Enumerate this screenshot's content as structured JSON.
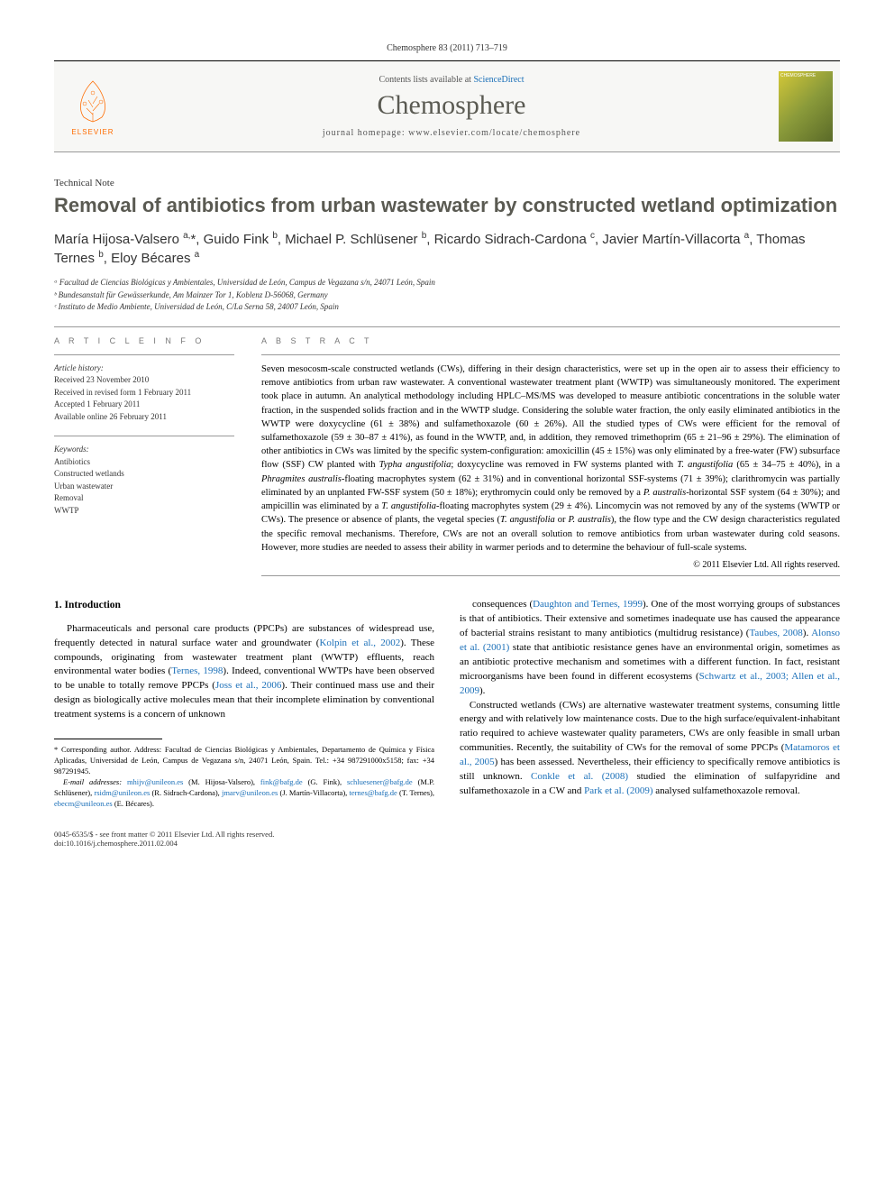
{
  "header": {
    "citation": "Chemosphere 83 (2011) 713–719",
    "contents_prefix": "Contents lists available at ",
    "contents_link": "ScienceDirect",
    "journal_name": "Chemosphere",
    "homepage_prefix": "journal homepage: ",
    "homepage_url": "www.elsevier.com/locate/chemosphere",
    "elsevier_label": "ELSEVIER",
    "cover_label": "CHEMOSPHERE"
  },
  "article": {
    "type": "Technical Note",
    "title": "Removal of antibiotics from urban wastewater by constructed wetland optimization"
  },
  "authors_html": "María Hijosa-Valsero <sup>a,</sup>*, Guido Fink <sup>b</sup>, Michael P. Schlüsener <sup>b</sup>, Ricardo Sidrach-Cardona <sup>c</sup>, Javier Martín-Villacorta <sup>a</sup>, Thomas Ternes <sup>b</sup>, Eloy Bécares <sup>a</sup>",
  "affiliations": [
    "ᵃ Facultad de Ciencias Biológicas y Ambientales, Universidad de León, Campus de Vegazana s/n, 24071 León, Spain",
    "ᵇ Bundesanstalt für Gewässerkunde, Am Mainzer Tor 1, Koblenz D-56068, Germany",
    "ᶜ Instituto de Medio Ambiente, Universidad de León, C/La Serna 58, 24007 León, Spain"
  ],
  "info": {
    "section_label": "A R T I C L E   I N F O",
    "history_title": "Article history:",
    "history": [
      "Received 23 November 2010",
      "Received in revised form 1 February 2011",
      "Accepted 1 February 2011",
      "Available online 26 February 2011"
    ],
    "keywords_title": "Keywords:",
    "keywords": [
      "Antibiotics",
      "Constructed wetlands",
      "Urban wastewater",
      "Removal",
      "WWTP"
    ]
  },
  "abstract": {
    "section_label": "A B S T R A C T",
    "text_html": "Seven mesocosm-scale constructed wetlands (CWs), differing in their design characteristics, were set up in the open air to assess their efficiency to remove antibiotics from urban raw wastewater. A conventional wastewater treatment plant (WWTP) was simultaneously monitored. The experiment took place in autumn. An analytical methodology including HPLC–MS/MS was developed to measure antibiotic concentrations in the soluble water fraction, in the suspended solids fraction and in the WWTP sludge. Considering the soluble water fraction, the only easily eliminated antibiotics in the WWTP were doxycycline (61 ± 38%) and sulfamethoxazole (60 ± 26%). All the studied types of CWs were efficient for the removal of sulfamethoxazole (59 ± 30–87 ± 41%), as found in the WWTP, and, in addition, they removed trimethoprim (65 ± 21–96 ± 29%). The elimination of other antibiotics in CWs was limited by the specific system-configuration: amoxicillin (45 ± 15%) was only eliminated by a free-water (FW) subsurface flow (SSF) CW planted with <i>Typha angustifolia</i>; doxycycline was removed in FW systems planted with <i>T. angustifolia</i> (65 ± 34–75 ± 40%), in a <i>Phragmites australis</i>-floating macrophytes system (62 ± 31%) and in conventional horizontal SSF-systems (71 ± 39%); clarithromycin was partially eliminated by an unplanted FW-SSF system (50 ± 18%); erythromycin could only be removed by a <i>P. australis</i>-horizontal SSF system (64 ± 30%); and ampicillin was eliminated by a <i>T. angustifolia</i>-floating macrophytes system (29 ± 4%). Lincomycin was not removed by any of the systems (WWTP or CWs). The presence or absence of plants, the vegetal species (<i>T. angustifolia</i> or <i>P. australis</i>), the flow type and the CW design characteristics regulated the specific removal mechanisms. Therefore, CWs are not an overall solution to remove antibiotics from urban wastewater during cold seasons. However, more studies are needed to assess their ability in warmer periods and to determine the behaviour of full-scale systems.",
    "copyright": "© 2011 Elsevier Ltd. All rights reserved."
  },
  "body": {
    "heading": "1. Introduction",
    "col1_html": "Pharmaceuticals and personal care products (PPCPs) are substances of widespread use, frequently detected in natural surface water and groundwater (<a href='#'>Kolpin et al., 2002</a>). These compounds, originating from wastewater treatment plant (WWTP) effluents, reach environmental water bodies (<a href='#'>Ternes, 1998</a>). Indeed, conventional WWTPs have been observed to be unable to totally remove PPCPs (<a href='#'>Joss et al., 2006</a>). Their continued mass use and their design as biologically active molecules mean that their incomplete elimination by conventional treatment systems is a concern of unknown",
    "col2_html": "consequences (<a href='#'>Daughton and Ternes, 1999</a>). One of the most worrying groups of substances is that of antibiotics. Their extensive and sometimes inadequate use has caused the appearance of bacterial strains resistant to many antibiotics (multidrug resistance) (<a href='#'>Taubes, 2008</a>). <a href='#'>Alonso et al. (2001)</a> state that antibiotic resistance genes have an environmental origin, sometimes as an antibiotic protective mechanism and sometimes with a different function. In fact, resistant microorganisms have been found in different ecosystems (<a href='#'>Schwartz et al., 2003; Allen et al., 2009</a>).<br>&nbsp;&nbsp;&nbsp;Constructed wetlands (CWs) are alternative wastewater treatment systems, consuming little energy and with relatively low maintenance costs. Due to the high surface/equivalent-inhabitant ratio required to achieve wastewater quality parameters, CWs are only feasible in small urban communities. Recently, the suitability of CWs for the removal of some PPCPs (<a href='#'>Matamoros et al., 2005</a>) has been assessed. Nevertheless, their efficiency to specifically remove antibiotics is still unknown. <a href='#'>Conkle et al. (2008)</a> studied the elimination of sulfapyridine and sulfamethoxazole in a CW and <a href='#'>Park et al. (2009)</a> analysed sulfamethoxazole removal."
  },
  "footnotes": {
    "corr_html": "* Corresponding author. Address: Facultad de Ciencias Biológicas y Ambientales, Departamento de Química y Física Aplicadas, Universidad de León, Campus de Vegazana s/n, 24071 León, Spain. Tel.: +34 987291000x5158; fax: +34 987291945.",
    "emails_html": "<i>E-mail addresses:</i> <a href='#'>mhijv@unileon.es</a> (M. Hijosa-Valsero), <a href='#'>fink@bafg.de</a> (G. Fink), <a href='#'>schluesener@bafg.de</a> (M.P. Schlüsener), <a href='#'>rsidm@unileon.es</a> (R. Sidrach-Cardona), <a href='#'>jmarv@unileon.es</a> (J. Martín-Villacorta), <a href='#'>ternes@bafg.de</a> (T. Ternes), <a href='#'>ebecm@unileon.es</a> (E. Bécares)."
  },
  "footer": {
    "left": "0045-6535/$ - see front matter © 2011 Elsevier Ltd. All rights reserved.",
    "doi": "doi:10.1016/j.chemosphere.2011.02.004"
  },
  "colors": {
    "link": "#1a6fb8",
    "journal_title": "#5a5a52",
    "elsevier_orange": "#ff6c00"
  }
}
